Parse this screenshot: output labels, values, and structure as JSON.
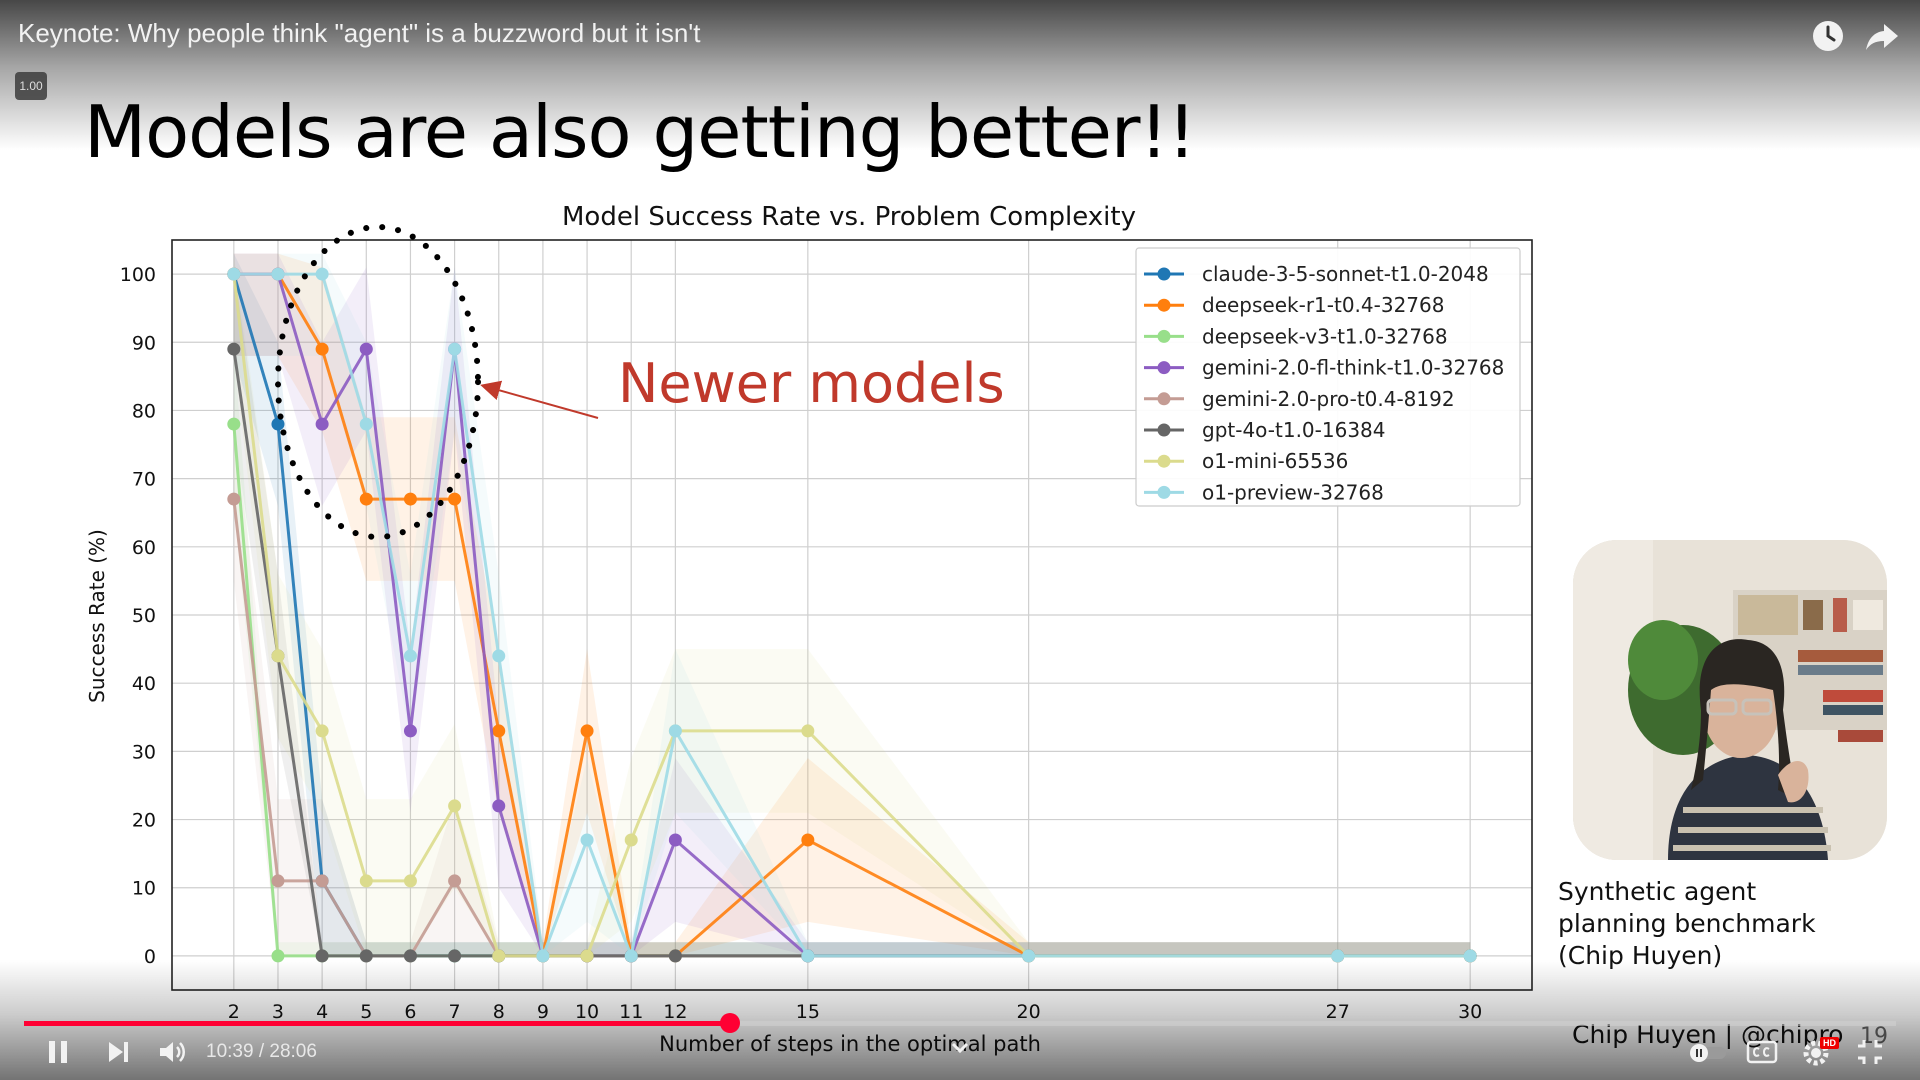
{
  "player": {
    "video_title": "Keynote: Why people think \"agent\" is a buzzword but it isn't",
    "speed_badge": "1.00",
    "current_time": "10:39",
    "time_separator": "/",
    "duration": "28:06",
    "progress_fraction": 0.377,
    "accent_color": "#ff0033",
    "icons": {
      "watch_later": "clock-icon",
      "share": "share-arrow-icon",
      "play_pause": "pause-icon",
      "next": "next-icon",
      "volume": "volume-icon",
      "chapter": "chevron-down-icon",
      "autoplay": "autoplay-toggle-icon",
      "captions": "cc-icon",
      "settings": "gear-icon",
      "settings_badge": "HD",
      "fullscreen": "exit-fullscreen-icon"
    }
  },
  "slide": {
    "title": "Models are also getting better!!",
    "annotation": "Newer models",
    "annotation_color": "#c0392b",
    "caption_lines": [
      "Synthetic agent",
      "planning benchmark",
      "(Chip Huyen)"
    ],
    "credit": "Chip Huyen | @chipro",
    "slide_number": "19"
  },
  "chart_data": {
    "type": "line",
    "title": "Model Success Rate vs. Problem Complexity",
    "xlabel": "Number of steps in the optimal path",
    "ylabel": "Success Rate (%)",
    "x": [
      2,
      3,
      4,
      5,
      6,
      7,
      8,
      9,
      10,
      11,
      12,
      15,
      20,
      27,
      30
    ],
    "x_tick_labels": [
      "2",
      "3",
      "4",
      "5",
      "6",
      "7",
      "8",
      "9",
      "10",
      "11",
      "12",
      "15",
      "20",
      "27",
      "30"
    ],
    "y_ticks": [
      0,
      10,
      20,
      30,
      40,
      50,
      60,
      70,
      80,
      90,
      100
    ],
    "ylim": [
      -5,
      105
    ],
    "xlim": [
      0.6,
      31.4
    ],
    "grid": true,
    "legend_position": "top-right",
    "series": [
      {
        "name": "claude-3-5-sonnet-t1.0-2048",
        "color": "#1f77b4",
        "values": [
          100,
          78,
          11,
          0,
          0,
          0,
          0,
          0,
          0,
          0,
          0,
          0,
          0,
          0,
          0
        ]
      },
      {
        "name": "deepseek-r1-t0.4-32768",
        "color": "#ff7f0e",
        "values": [
          100,
          100,
          89,
          67,
          67,
          67,
          33,
          0,
          33,
          0,
          0,
          17,
          0,
          0,
          0
        ]
      },
      {
        "name": "deepseek-v3-t1.0-32768",
        "color": "#98df8a",
        "values": [
          78,
          0,
          0,
          0,
          0,
          0,
          0,
          0,
          0,
          0,
          0,
          0,
          0,
          0,
          0
        ]
      },
      {
        "name": "gemini-2.0-fl-think-t1.0-32768",
        "color": "#8c5cc2",
        "values": [
          100,
          100,
          78,
          89,
          33,
          89,
          22,
          0,
          0,
          0,
          17,
          0,
          0,
          0,
          0
        ]
      },
      {
        "name": "gemini-2.0-pro-t0.4-8192",
        "color": "#c49c94",
        "values": [
          67,
          11,
          11,
          0,
          0,
          11,
          0,
          0,
          0,
          0,
          0,
          0,
          0,
          0,
          0
        ]
      },
      {
        "name": "gpt-4o-t1.0-16384",
        "color": "#666666",
        "values": [
          89,
          44,
          0,
          0,
          0,
          0,
          0,
          0,
          0,
          0,
          0,
          0,
          0,
          0,
          0
        ]
      },
      {
        "name": "o1-mini-65536",
        "color": "#dbdb8d",
        "values": [
          100,
          44,
          33,
          11,
          11,
          22,
          0,
          0,
          0,
          17,
          33,
          33,
          0,
          0,
          0
        ]
      },
      {
        "name": "o1-preview-32768",
        "color": "#9edae5",
        "values": [
          100,
          100,
          100,
          78,
          44,
          89,
          44,
          0,
          17,
          0,
          33,
          0,
          0,
          0,
          0
        ]
      }
    ]
  }
}
